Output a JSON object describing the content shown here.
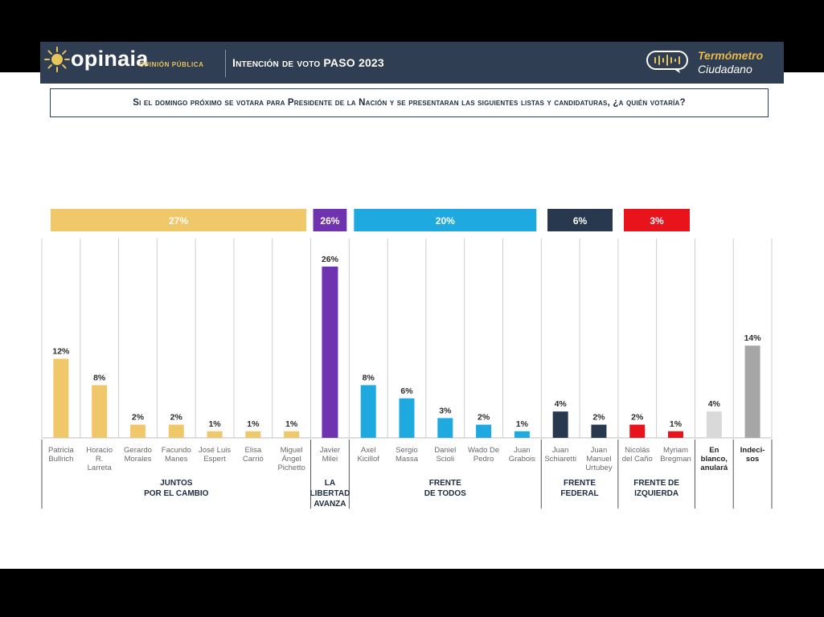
{
  "header": {
    "logo_text": "opinaia",
    "logo_sub": "OPINIÓN PÚBLICA",
    "title": "Intención de voto PASO 2023",
    "badge_line1": "Termómetro",
    "badge_line2": "Ciudadano"
  },
  "question": "Si el domingo próximo se votara para Presidente de la Nación y se presentaran las siguientes listas y candidaturas, ¿a quién votaría?",
  "colors": {
    "header": "#2f3e52",
    "juntos": "#f0c86a",
    "libertad": "#6f33b0",
    "frente_todos": "#1ea9e1",
    "frente_federal": "#27384f",
    "izquierda": "#e8131b",
    "blanco": "#d9d9d9",
    "indecisos": "#a6a6a6"
  },
  "chart_data": {
    "type": "bar",
    "ylim": [
      0,
      30
    ],
    "unit": "%",
    "candidates": [
      {
        "name": "Patricia Bullrich",
        "value": 12,
        "label": "12%",
        "group": "juntos"
      },
      {
        "name": "Horacio R. Larreta",
        "value": 8,
        "label": "8%",
        "group": "juntos"
      },
      {
        "name": "Gerardo Morales",
        "value": 2,
        "label": "2%",
        "group": "juntos"
      },
      {
        "name": "Facundo Manes",
        "value": 2,
        "label": "2%",
        "group": "juntos"
      },
      {
        "name": "José Luis Espert",
        "value": 1,
        "label": "1%",
        "group": "juntos"
      },
      {
        "name": "Elisa Carrió",
        "value": 1,
        "label": "1%",
        "group": "juntos"
      },
      {
        "name": "Miguel Ángel Pichetto",
        "value": 1,
        "label": "1%",
        "group": "juntos"
      },
      {
        "name": "Javier Milei",
        "value": 26,
        "label": "26%",
        "group": "libertad"
      },
      {
        "name": "Axel Kicillof",
        "value": 8,
        "label": "8%",
        "group": "frente_todos"
      },
      {
        "name": "Sergio Massa",
        "value": 6,
        "label": "6%",
        "group": "frente_todos"
      },
      {
        "name": "Daniel Scioli",
        "value": 3,
        "label": "3%",
        "group": "frente_todos"
      },
      {
        "name": "Wado De Pedro",
        "value": 2,
        "label": "2%",
        "group": "frente_todos"
      },
      {
        "name": "Juan Grabois",
        "value": 1,
        "label": "1%",
        "group": "frente_todos"
      },
      {
        "name": "Juan Schiaretti",
        "value": 4,
        "label": "4%",
        "group": "frente_federal"
      },
      {
        "name": "Juan Manuel Urtubey",
        "value": 2,
        "label": "2%",
        "group": "frente_federal"
      },
      {
        "name": "Nicolás del Caño",
        "value": 2,
        "label": "2%",
        "group": "izquierda"
      },
      {
        "name": "Myriam Bregman",
        "value": 1,
        "label": "1%",
        "group": "izquierda"
      },
      {
        "name": "En blanco, anulará",
        "value": 4,
        "label": "4%",
        "group": "blanco"
      },
      {
        "name": "Indecisos",
        "value": 14,
        "label": "14%",
        "group": "indecisos"
      }
    ],
    "groups": [
      {
        "id": "juntos",
        "name": "JUNTOS POR EL CAMBIO",
        "total": "27%"
      },
      {
        "id": "libertad",
        "name": "LA LIBERTAD AVANZA",
        "total": "26%"
      },
      {
        "id": "frente_todos",
        "name": "FRENTE DE TODOS",
        "total": "20%"
      },
      {
        "id": "frente_federal",
        "name": "FRENTE FEDERAL",
        "total": "6%"
      },
      {
        "id": "izquierda",
        "name": "FRENTE DE IZQUIERDA",
        "total": "3%"
      }
    ]
  }
}
